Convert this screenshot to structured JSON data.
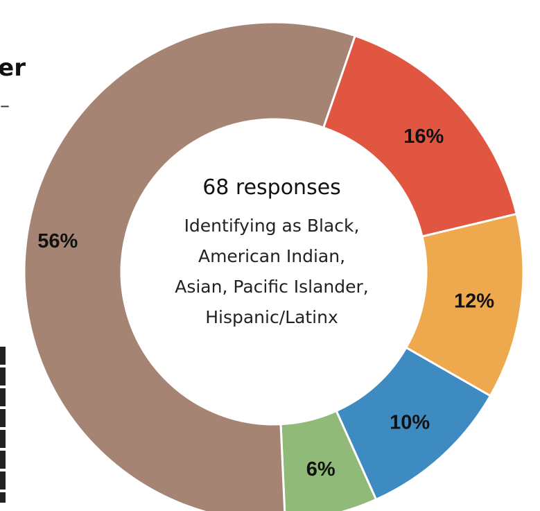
{
  "edge": {
    "heading_fragment": "er",
    "small_fragment": "–"
  },
  "chart_data": {
    "type": "pie",
    "center_title": "68 responses",
    "center_subtitle": [
      "Identifying as Black,",
      "American Indian,",
      "Asian, Pacific Islander,",
      "Hispanic/Latinx"
    ],
    "slices": [
      {
        "value": 16,
        "label": "16%",
        "color": "#e05641"
      },
      {
        "value": 12,
        "label": "12%",
        "color": "#eea84d"
      },
      {
        "value": 10,
        "label": "10%",
        "color": "#3e8bc2"
      },
      {
        "value": 6,
        "label": "6%",
        "color": "#8fba77"
      },
      {
        "value": 56,
        "label": "56%",
        "color": "#a68474"
      }
    ]
  }
}
